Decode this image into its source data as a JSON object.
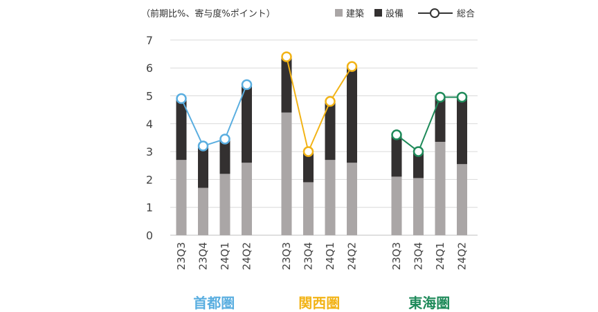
{
  "legend": {
    "unit_note": "（前期比%、寄与度%ポイント）",
    "construction_label": "建築",
    "equipment_label": "設備",
    "total_label": "総合"
  },
  "colors": {
    "construction": "#aaa6a6",
    "equipment": "#333030",
    "capital_region": "#5aaee0",
    "kansai": "#f2b316",
    "tokai": "#1f8a5a",
    "grid": "#d9d9d9"
  },
  "chart_data": {
    "type": "bar",
    "subtype": "stacked-bar-with-line",
    "title": "",
    "ylabel": "（前期比%、寄与度%ポイント）",
    "ylim": [
      0,
      7
    ],
    "yticks": [
      0,
      1,
      2,
      3,
      4,
      5,
      6,
      7
    ],
    "grid": true,
    "legend_position": "top",
    "groups": [
      {
        "name": "首都圏",
        "categories": [
          "23Q3",
          "23Q4",
          "24Q1",
          "24Q2"
        ],
        "construction": [
          2.7,
          1.7,
          2.2,
          2.6
        ],
        "equipment": [
          2.2,
          1.5,
          1.3,
          2.8
        ],
        "total": [
          4.9,
          3.2,
          3.45,
          5.4
        ]
      },
      {
        "name": "関西圏",
        "categories": [
          "23Q3",
          "23Q4",
          "24Q1",
          "24Q2"
        ],
        "construction": [
          4.4,
          1.9,
          2.7,
          2.6
        ],
        "equipment": [
          2.0,
          1.1,
          2.1,
          3.45
        ],
        "total": [
          6.4,
          3.0,
          4.8,
          6.05
        ]
      },
      {
        "name": "東海圏",
        "categories": [
          "23Q3",
          "23Q4",
          "24Q1",
          "24Q2"
        ],
        "construction": [
          2.1,
          2.05,
          3.35,
          2.55
        ],
        "equipment": [
          1.5,
          0.95,
          1.6,
          2.4
        ],
        "total": [
          3.6,
          3.0,
          4.95,
          4.95
        ]
      }
    ]
  }
}
